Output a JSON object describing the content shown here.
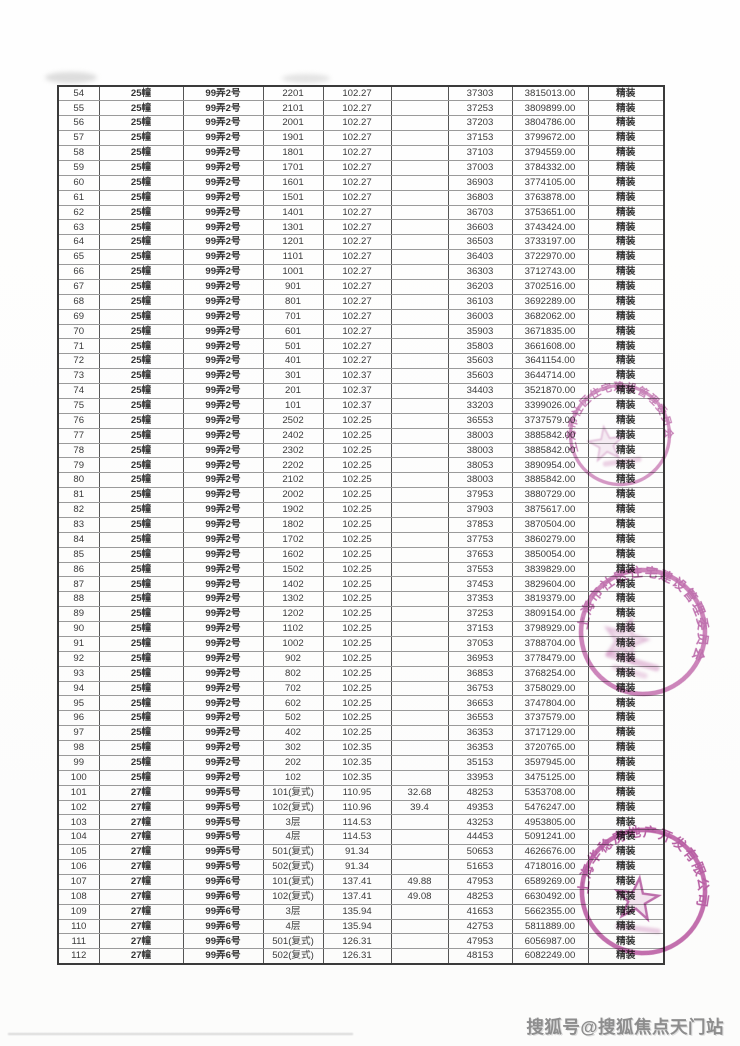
{
  "watermark": {
    "text": "搜狐号@搜狐焦点天门站"
  },
  "table": {
    "rows": [
      [
        "54",
        "25幢",
        "99弄2号",
        "2201",
        "102.27",
        "",
        "37303",
        "3815013.00",
        "精装"
      ],
      [
        "55",
        "25幢",
        "99弄2号",
        "2101",
        "102.27",
        "",
        "37253",
        "3809899.00",
        "精装"
      ],
      [
        "56",
        "25幢",
        "99弄2号",
        "2001",
        "102.27",
        "",
        "37203",
        "3804786.00",
        "精装"
      ],
      [
        "57",
        "25幢",
        "99弄2号",
        "1901",
        "102.27",
        "",
        "37153",
        "3799672.00",
        "精装"
      ],
      [
        "58",
        "25幢",
        "99弄2号",
        "1801",
        "102.27",
        "",
        "37103",
        "3794559.00",
        "精装"
      ],
      [
        "59",
        "25幢",
        "99弄2号",
        "1701",
        "102.27",
        "",
        "37003",
        "3784332.00",
        "精装"
      ],
      [
        "60",
        "25幢",
        "99弄2号",
        "1601",
        "102.27",
        "",
        "36903",
        "3774105.00",
        "精装"
      ],
      [
        "61",
        "25幢",
        "99弄2号",
        "1501",
        "102.27",
        "",
        "36803",
        "3763878.00",
        "精装"
      ],
      [
        "62",
        "25幢",
        "99弄2号",
        "1401",
        "102.27",
        "",
        "36703",
        "3753651.00",
        "精装"
      ],
      [
        "63",
        "25幢",
        "99弄2号",
        "1301",
        "102.27",
        "",
        "36603",
        "3743424.00",
        "精装"
      ],
      [
        "64",
        "25幢",
        "99弄2号",
        "1201",
        "102.27",
        "",
        "36503",
        "3733197.00",
        "精装"
      ],
      [
        "65",
        "25幢",
        "99弄2号",
        "1101",
        "102.27",
        "",
        "36403",
        "3722970.00",
        "精装"
      ],
      [
        "66",
        "25幢",
        "99弄2号",
        "1001",
        "102.27",
        "",
        "36303",
        "3712743.00",
        "精装"
      ],
      [
        "67",
        "25幢",
        "99弄2号",
        "901",
        "102.27",
        "",
        "36203",
        "3702516.00",
        "精装"
      ],
      [
        "68",
        "25幢",
        "99弄2号",
        "801",
        "102.27",
        "",
        "36103",
        "3692289.00",
        "精装"
      ],
      [
        "69",
        "25幢",
        "99弄2号",
        "701",
        "102.27",
        "",
        "36003",
        "3682062.00",
        "精装"
      ],
      [
        "70",
        "25幢",
        "99弄2号",
        "601",
        "102.27",
        "",
        "35903",
        "3671835.00",
        "精装"
      ],
      [
        "71",
        "25幢",
        "99弄2号",
        "501",
        "102.27",
        "",
        "35803",
        "3661608.00",
        "精装"
      ],
      [
        "72",
        "25幢",
        "99弄2号",
        "401",
        "102.27",
        "",
        "35603",
        "3641154.00",
        "精装"
      ],
      [
        "73",
        "25幢",
        "99弄2号",
        "301",
        "102.37",
        "",
        "35603",
        "3644714.00",
        "精装"
      ],
      [
        "74",
        "25幢",
        "99弄2号",
        "201",
        "102.37",
        "",
        "34403",
        "3521870.00",
        "精装"
      ],
      [
        "75",
        "25幢",
        "99弄2号",
        "101",
        "102.37",
        "",
        "33203",
        "3399026.00",
        "精装"
      ],
      [
        "76",
        "25幢",
        "99弄2号",
        "2502",
        "102.25",
        "",
        "36553",
        "3737579.00",
        "精装"
      ],
      [
        "77",
        "25幢",
        "99弄2号",
        "2402",
        "102.25",
        "",
        "38003",
        "3885842.00",
        "精装"
      ],
      [
        "78",
        "25幢",
        "99弄2号",
        "2302",
        "102.25",
        "",
        "38003",
        "3885842.00",
        "精装"
      ],
      [
        "79",
        "25幢",
        "99弄2号",
        "2202",
        "102.25",
        "",
        "38053",
        "3890954.00",
        "精装"
      ],
      [
        "80",
        "25幢",
        "99弄2号",
        "2102",
        "102.25",
        "",
        "38003",
        "3885842.00",
        "精装"
      ],
      [
        "81",
        "25幢",
        "99弄2号",
        "2002",
        "102.25",
        "",
        "37953",
        "3880729.00",
        "精装"
      ],
      [
        "82",
        "25幢",
        "99弄2号",
        "1902",
        "102.25",
        "",
        "37903",
        "3875617.00",
        "精装"
      ],
      [
        "83",
        "25幢",
        "99弄2号",
        "1802",
        "102.25",
        "",
        "37853",
        "3870504.00",
        "精装"
      ],
      [
        "84",
        "25幢",
        "99弄2号",
        "1702",
        "102.25",
        "",
        "37753",
        "3860279.00",
        "精装"
      ],
      [
        "85",
        "25幢",
        "99弄2号",
        "1602",
        "102.25",
        "",
        "37653",
        "3850054.00",
        "精装"
      ],
      [
        "86",
        "25幢",
        "99弄2号",
        "1502",
        "102.25",
        "",
        "37553",
        "3839829.00",
        "精装"
      ],
      [
        "87",
        "25幢",
        "99弄2号",
        "1402",
        "102.25",
        "",
        "37453",
        "3829604.00",
        "精装"
      ],
      [
        "88",
        "25幢",
        "99弄2号",
        "1302",
        "102.25",
        "",
        "37353",
        "3819379.00",
        "精装"
      ],
      [
        "89",
        "25幢",
        "99弄2号",
        "1202",
        "102.25",
        "",
        "37253",
        "3809154.00",
        "精装"
      ],
      [
        "90",
        "25幢",
        "99弄2号",
        "1102",
        "102.25",
        "",
        "37153",
        "3798929.00",
        "精装"
      ],
      [
        "91",
        "25幢",
        "99弄2号",
        "1002",
        "102.25",
        "",
        "37053",
        "3788704.00",
        "精装"
      ],
      [
        "92",
        "25幢",
        "99弄2号",
        "902",
        "102.25",
        "",
        "36953",
        "3778479.00",
        "精装"
      ],
      [
        "93",
        "25幢",
        "99弄2号",
        "802",
        "102.25",
        "",
        "36853",
        "3768254.00",
        "精装"
      ],
      [
        "94",
        "25幢",
        "99弄2号",
        "702",
        "102.25",
        "",
        "36753",
        "3758029.00",
        "精装"
      ],
      [
        "95",
        "25幢",
        "99弄2号",
        "602",
        "102.25",
        "",
        "36653",
        "3747804.00",
        "精装"
      ],
      [
        "96",
        "25幢",
        "99弄2号",
        "502",
        "102.25",
        "",
        "36553",
        "3737579.00",
        "精装"
      ],
      [
        "97",
        "25幢",
        "99弄2号",
        "402",
        "102.25",
        "",
        "36353",
        "3717129.00",
        "精装"
      ],
      [
        "98",
        "25幢",
        "99弄2号",
        "302",
        "102.35",
        "",
        "36353",
        "3720765.00",
        "精装"
      ],
      [
        "99",
        "25幢",
        "99弄2号",
        "202",
        "102.35",
        "",
        "35153",
        "3597945.00",
        "精装"
      ],
      [
        "100",
        "25幢",
        "99弄2号",
        "102",
        "102.35",
        "",
        "33953",
        "3475125.00",
        "精装"
      ],
      [
        "101",
        "27幢",
        "99弄5号",
        "101(复式)",
        "110.95",
        "32.68",
        "48253",
        "5353708.00",
        "精装"
      ],
      [
        "102",
        "27幢",
        "99弄5号",
        "102(复式)",
        "110.96",
        "39.4",
        "49353",
        "5476247.00",
        "精装"
      ],
      [
        "103",
        "27幢",
        "99弄5号",
        "3层",
        "114.53",
        "",
        "43253",
        "4953805.00",
        "精装"
      ],
      [
        "104",
        "27幢",
        "99弄5号",
        "4层",
        "114.53",
        "",
        "44453",
        "5091241.00",
        "精装"
      ],
      [
        "105",
        "27幢",
        "99弄5号",
        "501(复式)",
        "91.34",
        "",
        "50653",
        "4626676.00",
        "精装"
      ],
      [
        "106",
        "27幢",
        "99弄5号",
        "502(复式)",
        "91.34",
        "",
        "51653",
        "4718016.00",
        "精装"
      ],
      [
        "107",
        "27幢",
        "99弄6号",
        "101(复式)",
        "137.41",
        "49.88",
        "47953",
        "6589269.00",
        "精装"
      ],
      [
        "108",
        "27幢",
        "99弄6号",
        "102(复式)",
        "137.41",
        "49.08",
        "48253",
        "6630492.00",
        "精装"
      ],
      [
        "109",
        "27幢",
        "99弄6号",
        "3层",
        "135.94",
        "",
        "41653",
        "5662355.00",
        "精装"
      ],
      [
        "110",
        "27幢",
        "99弄6号",
        "4层",
        "135.94",
        "",
        "42753",
        "5811889.00",
        "精装"
      ],
      [
        "111",
        "27幢",
        "99弄6号",
        "501(复式)",
        "126.31",
        "",
        "47953",
        "6056987.00",
        "精装"
      ],
      [
        "112",
        "27幢",
        "99弄6号",
        "502(复式)",
        "126.31",
        "",
        "48153",
        "6082249.00",
        "精装"
      ]
    ]
  },
  "stamps": [
    {
      "arc_text": "上海市社区住宅建设管理委员会"
    },
    {
      "arc_text": "上海市社区住宅建设管理委员会"
    },
    {
      "arc_text": "上海华稔房地产开发有限公司"
    }
  ],
  "stamp_color": "#b9539f"
}
